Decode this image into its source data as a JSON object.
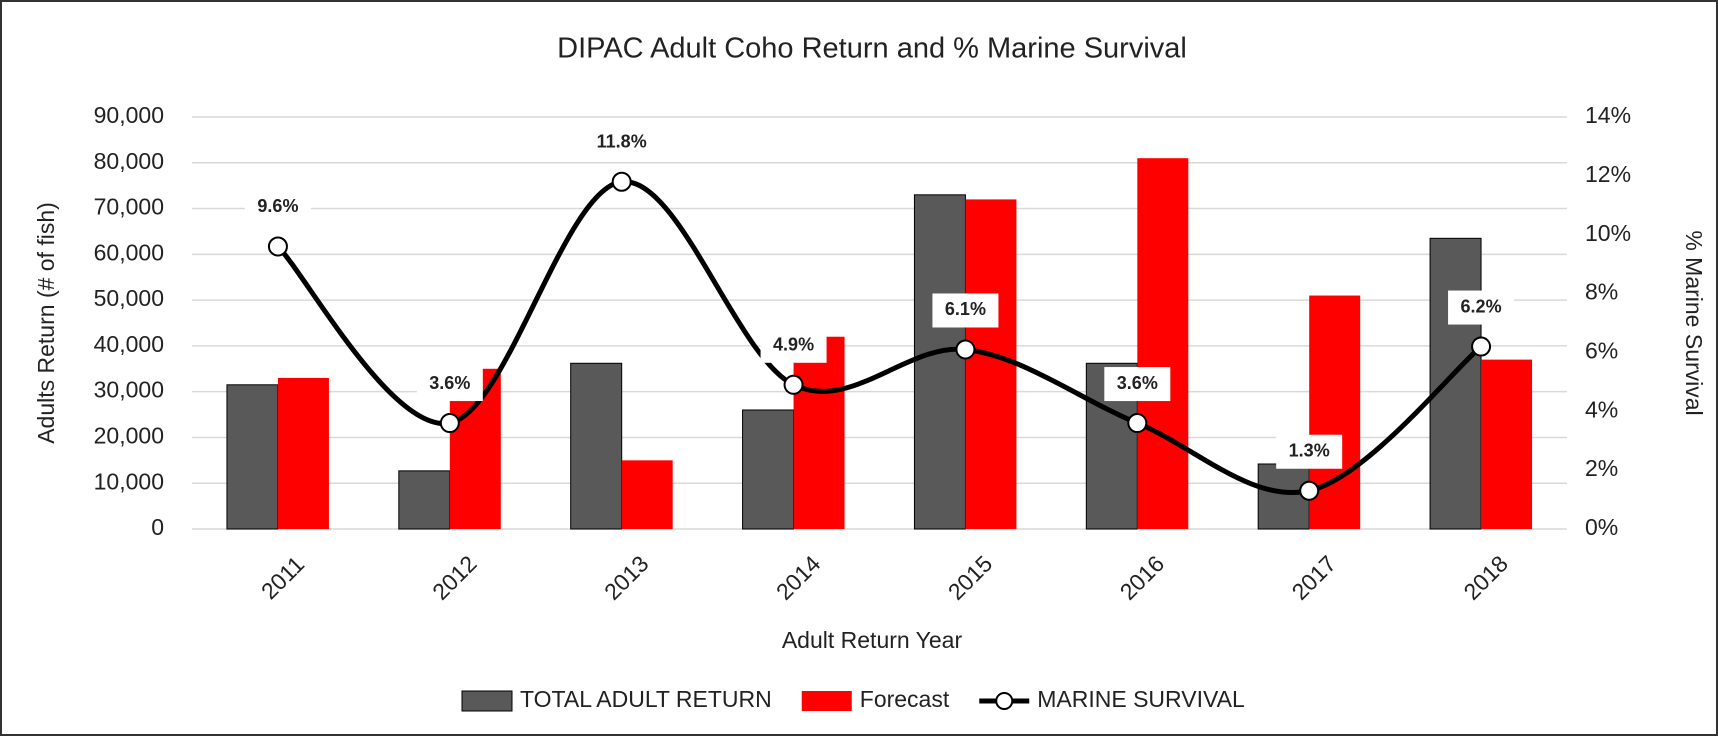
{
  "chart_data": {
    "type": "bar_line",
    "title": "DIPAC Adult Coho Return and % Marine Survival",
    "xlabel": "Adult Return Year",
    "ylabel": "Adults Return (# of fish)",
    "y2label": "% Marine Survival",
    "categories": [
      "2011",
      "2012",
      "2013",
      "2014",
      "2015",
      "2016",
      "2017",
      "2018"
    ],
    "series": [
      {
        "name": "TOTAL ADULT RETURN",
        "type": "bar",
        "color": "#595959",
        "values": [
          31500,
          12700,
          36200,
          26000,
          73000,
          36200,
          14200,
          63500
        ]
      },
      {
        "name": "Forecast",
        "type": "bar",
        "color": "#ff0000",
        "values": [
          33000,
          35000,
          15000,
          42000,
          72000,
          81000,
          51000,
          37000
        ]
      },
      {
        "name": "MARINE SURVIVAL",
        "type": "line",
        "axis": "y2",
        "color": "#000000",
        "values": [
          9.6,
          3.6,
          11.8,
          4.9,
          6.1,
          3.6,
          1.3,
          6.2
        ],
        "value_labels": [
          "9.6%",
          "3.6%",
          "11.8%",
          "4.9%",
          "6.1%",
          "3.6%",
          "1.3%",
          "6.2%"
        ]
      }
    ],
    "ylim": [
      0,
      90000
    ],
    "yticks": [
      0,
      {
        "value": 10000,
        "label": "10,000"
      },
      {
        "value": 20000,
        "label": "20,000"
      },
      {
        "value": 30000,
        "label": "30,000"
      },
      {
        "value": 40000,
        "label": "40,000"
      },
      {
        "value": 50000,
        "label": "50,000"
      },
      {
        "value": 60000,
        "label": "60,000"
      },
      {
        "value": 70000,
        "label": "70,000"
      },
      {
        "value": 80000,
        "label": "80,000"
      },
      {
        "value": 90000,
        "label": "90,000"
      }
    ],
    "y2lim": [
      0,
      14
    ],
    "y2ticks": [
      {
        "value": 0,
        "label": "0%"
      },
      {
        "value": 2,
        "label": "2%"
      },
      {
        "value": 4,
        "label": "4%"
      },
      {
        "value": 6,
        "label": "6%"
      },
      {
        "value": 8,
        "label": "8%"
      },
      {
        "value": 10,
        "label": "10%"
      },
      {
        "value": 12,
        "label": "12%"
      },
      {
        "value": 14,
        "label": "14%"
      }
    ],
    "grid": true,
    "legend": "bottom"
  }
}
